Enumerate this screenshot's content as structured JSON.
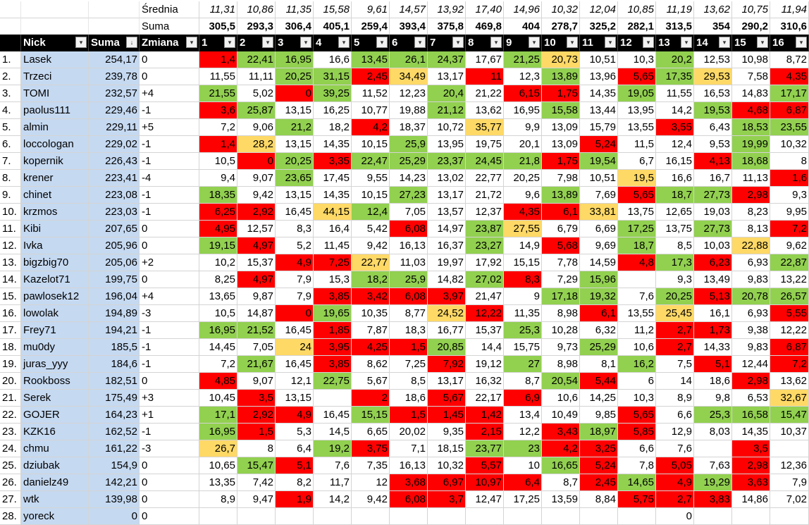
{
  "top_rows": {
    "srednia_label": "Średnia",
    "suma_label": "Suma",
    "srednia": [
      "11,31",
      "10,86",
      "11,35",
      "15,58",
      "9,61",
      "14,57",
      "13,92",
      "17,40",
      "14,96",
      "10,32",
      "12,04",
      "10,85",
      "11,19",
      "13,62",
      "10,75",
      "11,94"
    ],
    "suma": [
      "305,5",
      "293,3",
      "306,4",
      "405,1",
      "259,4",
      "393,4",
      "375,8",
      "469,8",
      "404",
      "278,7",
      "325,2",
      "282,1",
      "313,5",
      "354",
      "290,2",
      "310,6"
    ]
  },
  "header": {
    "nick": "Nick",
    "suma": "Suma",
    "zmiana": "Zmiana",
    "rounds": [
      "1",
      "2",
      "3",
      "4",
      "5",
      "6",
      "7",
      "8",
      "9",
      "10",
      "11",
      "12",
      "13",
      "14",
      "15",
      "16"
    ],
    "filter_icon": "▾",
    "sort_icon": "↓"
  },
  "colors": {
    "r": "#ff0000",
    "g": "#92d050",
    "y": "#ffd966",
    "n": "#ffffff",
    "name_bg": "#c5d9f1",
    "header_bg": "#000000"
  },
  "rows": [
    {
      "rank": "1.",
      "nick": "Lasek",
      "suma": "254,17",
      "zmiana": "0",
      "vals": [
        "1,4",
        "22,41",
        "16,95",
        "16,6",
        "13,45",
        "26,1",
        "24,37",
        "17,67",
        "21,25",
        "20,73",
        "10,51",
        "10,3",
        "20,2",
        "12,53",
        "10,98",
        "8,72"
      ],
      "colors": [
        "r",
        "g",
        "g",
        "n",
        "g",
        "g",
        "g",
        "n",
        "g",
        "y",
        "n",
        "n",
        "g",
        "n",
        "n",
        "n"
      ]
    },
    {
      "rank": "2.",
      "nick": "Trzeci",
      "suma": "239,78",
      "zmiana": "0",
      "vals": [
        "11,55",
        "11,11",
        "20,25",
        "31,15",
        "2,45",
        "34,49",
        "13,17",
        "11",
        "12,3",
        "13,89",
        "13,96",
        "5,65",
        "17,35",
        "29,53",
        "7,58",
        "4,35"
      ],
      "colors": [
        "n",
        "n",
        "g",
        "g",
        "r",
        "y",
        "n",
        "r",
        "n",
        "g",
        "n",
        "r",
        "g",
        "y",
        "n",
        "r"
      ]
    },
    {
      "rank": "3.",
      "nick": "TOMI",
      "suma": "232,57",
      "zmiana": "+4",
      "vals": [
        "21,55",
        "5,02",
        "0",
        "39,25",
        "11,52",
        "12,23",
        "20,4",
        "21,22",
        "6,15",
        "1,75",
        "14,35",
        "19,05",
        "11,55",
        "16,53",
        "14,83",
        "17,17"
      ],
      "colors": [
        "g",
        "n",
        "r",
        "g",
        "n",
        "n",
        "g",
        "n",
        "r",
        "r",
        "n",
        "g",
        "n",
        "n",
        "n",
        "g"
      ]
    },
    {
      "rank": "4.",
      "nick": "paolus111",
      "suma": "229,46",
      "zmiana": "-1",
      "vals": [
        "3,6",
        "25,87",
        "13,15",
        "16,25",
        "10,77",
        "19,88",
        "21,12",
        "13,62",
        "16,95",
        "15,58",
        "13,44",
        "13,95",
        "14,2",
        "19,53",
        "4,68",
        "6,87"
      ],
      "colors": [
        "r",
        "g",
        "n",
        "n",
        "n",
        "n",
        "g",
        "n",
        "n",
        "g",
        "n",
        "n",
        "n",
        "g",
        "r",
        "r"
      ]
    },
    {
      "rank": "5.",
      "nick": "almin",
      "suma": "229,11",
      "zmiana": "+5",
      "vals": [
        "7,2",
        "9,06",
        "21,2",
        "18,2",
        "4,2",
        "18,37",
        "10,72",
        "35,77",
        "9,9",
        "13,09",
        "15,79",
        "13,55",
        "3,55",
        "6,43",
        "18,53",
        "23,55"
      ],
      "colors": [
        "n",
        "n",
        "g",
        "n",
        "r",
        "n",
        "n",
        "y",
        "n",
        "n",
        "n",
        "n",
        "r",
        "n",
        "g",
        "g"
      ]
    },
    {
      "rank": "6.",
      "nick": "loccologan",
      "suma": "229,02",
      "zmiana": "-1",
      "vals": [
        "1,4",
        "28,2",
        "13,15",
        "14,35",
        "10,15",
        "25,9",
        "13,95",
        "19,75",
        "20,1",
        "13,09",
        "5,24",
        "11,5",
        "12,4",
        "9,53",
        "19,99",
        "10,32"
      ],
      "colors": [
        "r",
        "y",
        "n",
        "n",
        "n",
        "g",
        "n",
        "n",
        "n",
        "n",
        "r",
        "n",
        "n",
        "n",
        "g",
        "n"
      ]
    },
    {
      "rank": "7.",
      "nick": "kopernik",
      "suma": "226,43",
      "zmiana": "-1",
      "vals": [
        "10,5",
        "0",
        "20,25",
        "3,35",
        "22,47",
        "25,29",
        "23,37",
        "24,45",
        "21,8",
        "1,75",
        "19,54",
        "6,7",
        "16,15",
        "4,13",
        "18,68",
        "8"
      ],
      "colors": [
        "n",
        "r",
        "g",
        "r",
        "g",
        "g",
        "g",
        "g",
        "g",
        "r",
        "g",
        "n",
        "n",
        "r",
        "g",
        "n"
      ]
    },
    {
      "rank": "8.",
      "nick": "krener",
      "suma": "223,41",
      "zmiana": "-4",
      "vals": [
        "9,4",
        "9,07",
        "23,65",
        "17,45",
        "9,55",
        "14,23",
        "13,02",
        "22,77",
        "20,25",
        "7,98",
        "10,51",
        "19,5",
        "16,6",
        "16,7",
        "11,13",
        "1,6"
      ],
      "colors": [
        "n",
        "n",
        "g",
        "n",
        "n",
        "n",
        "n",
        "n",
        "n",
        "n",
        "n",
        "y",
        "n",
        "n",
        "n",
        "r"
      ]
    },
    {
      "rank": "9.",
      "nick": "chinet",
      "suma": "223,08",
      "zmiana": "-1",
      "vals": [
        "18,35",
        "9,42",
        "13,15",
        "14,35",
        "10,15",
        "27,23",
        "13,17",
        "21,72",
        "9,6",
        "13,89",
        "7,69",
        "5,65",
        "18,7",
        "27,73",
        "2,98",
        "9,3"
      ],
      "colors": [
        "g",
        "n",
        "n",
        "n",
        "n",
        "g",
        "n",
        "n",
        "n",
        "g",
        "n",
        "r",
        "g",
        "g",
        "r",
        "n"
      ]
    },
    {
      "rank": "10.",
      "nick": "krzmos",
      "suma": "223,03",
      "zmiana": "-1",
      "vals": [
        "6,25",
        "2,92",
        "16,45",
        "44,15",
        "12,4",
        "7,05",
        "13,57",
        "12,37",
        "4,35",
        "6,1",
        "33,81",
        "13,75",
        "12,65",
        "19,03",
        "8,23",
        "9,95"
      ],
      "colors": [
        "r",
        "r",
        "n",
        "y",
        "g",
        "n",
        "n",
        "n",
        "r",
        "r",
        "y",
        "n",
        "n",
        "n",
        "n",
        "n"
      ]
    },
    {
      "rank": "11.",
      "nick": "Kibi",
      "suma": "207,65",
      "zmiana": "0",
      "vals": [
        "4,95",
        "12,57",
        "8,3",
        "16,4",
        "5,42",
        "6,08",
        "14,97",
        "23,87",
        "27,55",
        "6,79",
        "6,69",
        "17,25",
        "13,75",
        "27,73",
        "8,13",
        "7,2"
      ],
      "colors": [
        "r",
        "n",
        "n",
        "n",
        "n",
        "r",
        "n",
        "g",
        "y",
        "n",
        "n",
        "g",
        "n",
        "g",
        "n",
        "r"
      ]
    },
    {
      "rank": "12.",
      "nick": "Ivka",
      "suma": "205,96",
      "zmiana": "0",
      "vals": [
        "19,15",
        "4,97",
        "5,2",
        "11,45",
        "9,42",
        "16,13",
        "16,37",
        "23,27",
        "14,9",
        "5,68",
        "9,69",
        "18,7",
        "8,5",
        "10,03",
        "22,88",
        "9,62"
      ],
      "colors": [
        "g",
        "r",
        "n",
        "n",
        "n",
        "n",
        "n",
        "g",
        "n",
        "r",
        "n",
        "g",
        "n",
        "n",
        "y",
        "n"
      ]
    },
    {
      "rank": "13.",
      "nick": "bigzbig70",
      "suma": "205,06",
      "zmiana": "+2",
      "vals": [
        "10,2",
        "15,37",
        "4,9",
        "7,25",
        "22,77",
        "11,03",
        "19,97",
        "17,92",
        "15,15",
        "7,78",
        "14,59",
        "4,8",
        "17,3",
        "6,23",
        "6,93",
        "22,87"
      ],
      "colors": [
        "n",
        "n",
        "r",
        "r",
        "y",
        "n",
        "n",
        "n",
        "n",
        "n",
        "n",
        "r",
        "g",
        "r",
        "n",
        "g"
      ]
    },
    {
      "rank": "14.",
      "nick": "Kazelot71",
      "suma": "199,75",
      "zmiana": "0",
      "vals": [
        "8,25",
        "4,97",
        "7,9",
        "15,3",
        "18,2",
        "25,9",
        "14,82",
        "27,02",
        "8,3",
        "7,29",
        "15,96",
        "",
        "9,3",
        "13,49",
        "9,83",
        "13,22"
      ],
      "colors": [
        "n",
        "r",
        "n",
        "n",
        "g",
        "g",
        "n",
        "g",
        "r",
        "n",
        "g",
        "n",
        "n",
        "n",
        "n",
        "n"
      ]
    },
    {
      "rank": "15.",
      "nick": "pawlosek12",
      "suma": "196,04",
      "zmiana": "+4",
      "vals": [
        "13,65",
        "9,87",
        "7,9",
        "3,85",
        "3,42",
        "6,08",
        "3,97",
        "21,47",
        "9",
        "17,18",
        "19,32",
        "7,6",
        "20,25",
        "5,13",
        "20,78",
        "26,57"
      ],
      "colors": [
        "n",
        "n",
        "n",
        "r",
        "r",
        "r",
        "r",
        "n",
        "n",
        "g",
        "g",
        "n",
        "g",
        "r",
        "g",
        "g"
      ]
    },
    {
      "rank": "16.",
      "nick": "lowolak",
      "suma": "194,89",
      "zmiana": "-3",
      "vals": [
        "10,5",
        "14,87",
        "0",
        "19,65",
        "10,35",
        "8,77",
        "24,52",
        "12,22",
        "11,35",
        "8,98",
        "6,1",
        "13,55",
        "25,45",
        "16,1",
        "6,93",
        "5,55"
      ],
      "colors": [
        "n",
        "n",
        "r",
        "g",
        "n",
        "n",
        "y",
        "r",
        "n",
        "n",
        "r",
        "n",
        "y",
        "n",
        "n",
        "r"
      ]
    },
    {
      "rank": "17.",
      "nick": "Frey71",
      "suma": "194,21",
      "zmiana": "-1",
      "vals": [
        "16,95",
        "21,52",
        "16,45",
        "1,85",
        "7,87",
        "18,3",
        "16,77",
        "15,37",
        "25,3",
        "10,28",
        "6,32",
        "11,2",
        "2,7",
        "1,73",
        "9,38",
        "12,22"
      ],
      "colors": [
        "g",
        "g",
        "n",
        "r",
        "n",
        "n",
        "n",
        "n",
        "g",
        "n",
        "n",
        "n",
        "r",
        "r",
        "n",
        "n"
      ]
    },
    {
      "rank": "18.",
      "nick": "mu0dy",
      "suma": "185,5",
      "zmiana": "-1",
      "vals": [
        "14,45",
        "7,05",
        "24",
        "3,95",
        "4,25",
        "1,5",
        "20,85",
        "14,4",
        "15,75",
        "9,73",
        "25,29",
        "10,6",
        "2,7",
        "14,33",
        "9,83",
        "6,87"
      ],
      "colors": [
        "n",
        "n",
        "y",
        "r",
        "r",
        "r",
        "g",
        "n",
        "n",
        "n",
        "g",
        "n",
        "r",
        "n",
        "n",
        "r"
      ]
    },
    {
      "rank": "19.",
      "nick": "juras_yyy",
      "suma": "184,6",
      "zmiana": "-1",
      "vals": [
        "7,2",
        "21,67",
        "16,45",
        "3,85",
        "8,62",
        "7,25",
        "7,92",
        "19,12",
        "27",
        "8,98",
        "8,1",
        "16,2",
        "7,5",
        "5,1",
        "12,44",
        "7,2"
      ],
      "colors": [
        "n",
        "g",
        "n",
        "r",
        "n",
        "n",
        "r",
        "n",
        "g",
        "n",
        "n",
        "g",
        "n",
        "r",
        "n",
        "r"
      ]
    },
    {
      "rank": "20.",
      "nick": "Rookboss",
      "suma": "182,51",
      "zmiana": "0",
      "vals": [
        "4,85",
        "9,07",
        "12,1",
        "22,75",
        "5,67",
        "8,5",
        "13,17",
        "16,32",
        "8,7",
        "20,54",
        "5,44",
        "6",
        "14",
        "18,6",
        "2,98",
        "13,62"
      ],
      "colors": [
        "r",
        "n",
        "n",
        "g",
        "n",
        "n",
        "n",
        "n",
        "n",
        "g",
        "r",
        "n",
        "n",
        "n",
        "r",
        "n"
      ]
    },
    {
      "rank": "21.",
      "nick": "Serek",
      "suma": "175,49",
      "zmiana": "+3",
      "vals": [
        "10,45",
        "3,5",
        "13,15",
        "",
        "2",
        "18,6",
        "5,67",
        "22,17",
        "6,9",
        "10,6",
        "14,25",
        "10,3",
        "8,9",
        "9,8",
        "6,53",
        "32,67"
      ],
      "colors": [
        "n",
        "r",
        "n",
        "n",
        "r",
        "n",
        "r",
        "n",
        "r",
        "n",
        "n",
        "n",
        "n",
        "n",
        "n",
        "y"
      ]
    },
    {
      "rank": "22.",
      "nick": "GOJER",
      "suma": "164,23",
      "zmiana": "+1",
      "vals": [
        "17,1",
        "2,92",
        "4,9",
        "16,45",
        "15,15",
        "1,5",
        "1,45",
        "1,42",
        "13,4",
        "10,49",
        "9,85",
        "5,65",
        "6,6",
        "25,3",
        "16,58",
        "15,47"
      ],
      "colors": [
        "g",
        "r",
        "r",
        "n",
        "g",
        "r",
        "r",
        "r",
        "n",
        "n",
        "n",
        "r",
        "n",
        "g",
        "g",
        "g"
      ]
    },
    {
      "rank": "23.",
      "nick": "KZK16",
      "suma": "162,52",
      "zmiana": "-1",
      "vals": [
        "16,95",
        "1,5",
        "5,3",
        "14,5",
        "6,65",
        "20,02",
        "9,35",
        "2,15",
        "12,2",
        "3,43",
        "18,97",
        "5,85",
        "12,9",
        "8,03",
        "14,35",
        "10,37"
      ],
      "colors": [
        "g",
        "r",
        "n",
        "n",
        "n",
        "n",
        "n",
        "r",
        "n",
        "r",
        "g",
        "r",
        "n",
        "n",
        "n",
        "n"
      ]
    },
    {
      "rank": "24.",
      "nick": "chmu",
      "suma": "161,22",
      "zmiana": "-3",
      "vals": [
        "26,7",
        "8",
        "6,4",
        "19,2",
        "3,75",
        "7,1",
        "18,15",
        "23,77",
        "23",
        "4,2",
        "3,25",
        "6,6",
        "7,6",
        "",
        "3,5",
        ""
      ],
      "colors": [
        "y",
        "n",
        "n",
        "g",
        "r",
        "n",
        "n",
        "g",
        "g",
        "r",
        "r",
        "n",
        "n",
        "n",
        "r",
        "n"
      ]
    },
    {
      "rank": "25.",
      "nick": "dziubak",
      "suma": "154,9",
      "zmiana": "0",
      "vals": [
        "10,65",
        "15,47",
        "5,1",
        "7,6",
        "7,35",
        "16,13",
        "10,32",
        "5,57",
        "10",
        "16,65",
        "5,24",
        "7,8",
        "5,05",
        "7,63",
        "2,98",
        "12,36"
      ],
      "colors": [
        "n",
        "g",
        "r",
        "n",
        "n",
        "n",
        "n",
        "r",
        "n",
        "g",
        "r",
        "n",
        "r",
        "n",
        "r",
        "n"
      ]
    },
    {
      "rank": "26.",
      "nick": "danielz49",
      "suma": "142,21",
      "zmiana": "0",
      "vals": [
        "13,35",
        "7,42",
        "8,2",
        "11,7",
        "12",
        "3,68",
        "6,97",
        "10,97",
        "6,4",
        "8,7",
        "2,45",
        "14,65",
        "4,9",
        "19,29",
        "3,63",
        "7,9"
      ],
      "colors": [
        "n",
        "n",
        "n",
        "n",
        "n",
        "r",
        "r",
        "r",
        "r",
        "n",
        "r",
        "g",
        "r",
        "g",
        "r",
        "n"
      ]
    },
    {
      "rank": "27.",
      "nick": "wtk",
      "suma": "139,98",
      "zmiana": "0",
      "vals": [
        "8,9",
        "9,47",
        "1,9",
        "14,2",
        "9,42",
        "6,08",
        "3,7",
        "12,47",
        "17,25",
        "13,59",
        "8,84",
        "5,75",
        "2,7",
        "3,83",
        "14,86",
        "7,02"
      ],
      "colors": [
        "n",
        "n",
        "r",
        "n",
        "n",
        "r",
        "r",
        "n",
        "n",
        "n",
        "n",
        "r",
        "r",
        "r",
        "n",
        "n"
      ]
    },
    {
      "rank": "28.",
      "nick": "yoreck",
      "suma": "0",
      "zmiana": "0",
      "vals": [
        "",
        "",
        "",
        "",
        "",
        "",
        "",
        "",
        "",
        "",
        "",
        "",
        "0",
        "",
        "",
        ""
      ],
      "colors": [
        "n",
        "n",
        "n",
        "n",
        "n",
        "n",
        "n",
        "n",
        "n",
        "n",
        "n",
        "n",
        "n",
        "n",
        "n",
        "n"
      ]
    }
  ]
}
